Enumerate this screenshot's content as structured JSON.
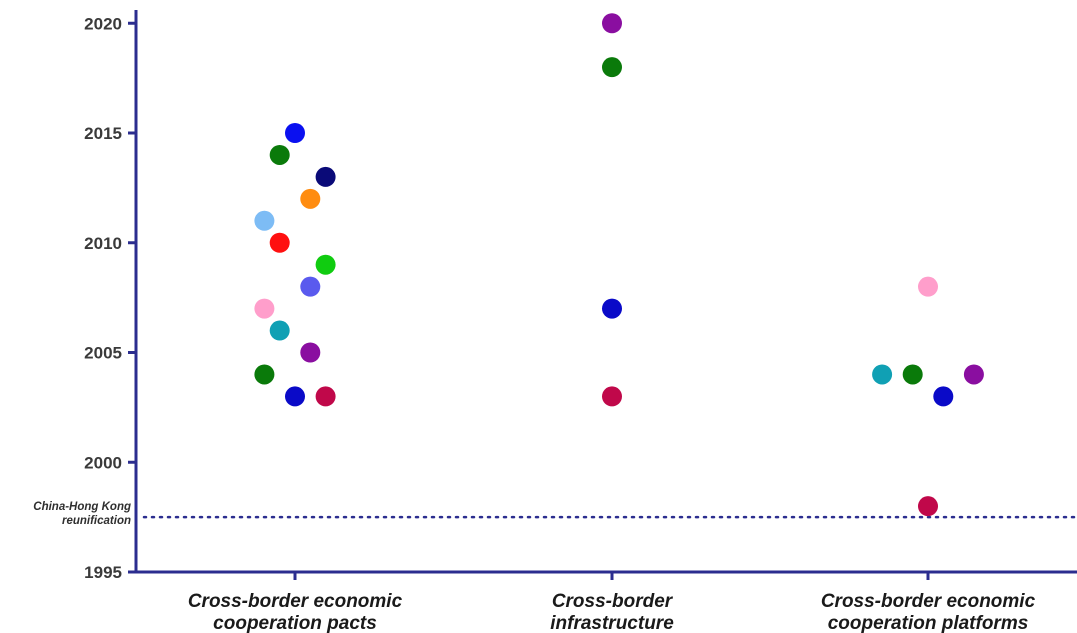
{
  "chart_data": {
    "type": "scatter",
    "y_ticks": [
      "2020",
      "2015",
      "2010",
      "2005",
      "2000",
      "1995"
    ],
    "y_tick_values": [
      2020,
      2015,
      2010,
      2005,
      2000,
      1995
    ],
    "ylim": [
      1995,
      2021
    ],
    "grid": false,
    "categories": [
      [
        "Cross-border economic",
        "cooperation pacts"
      ],
      [
        "Cross-border",
        "infrastructure"
      ],
      [
        "Cross-border economic",
        "cooperation platforms"
      ]
    ],
    "reference_line": {
      "value": 1997.5,
      "label": [
        "China-Hong Kong",
        "reunification"
      ],
      "style": "dotted",
      "color": "#2b2d8f"
    },
    "colors": {
      "axis": "#2b2d8f"
    },
    "points": [
      {
        "category": 0,
        "offset": 0,
        "y": 2015,
        "color": "#0a10f0"
      },
      {
        "category": 0,
        "offset": -1,
        "y": 2014,
        "color": "#0a7a0a"
      },
      {
        "category": 0,
        "offset": 2,
        "y": 2013,
        "color": "#0a0a78"
      },
      {
        "category": 0,
        "offset": 1,
        "y": 2012,
        "color": "#ff8c10"
      },
      {
        "category": 0,
        "offset": -2,
        "y": 2011,
        "color": "#7dbcf5"
      },
      {
        "category": 0,
        "offset": -1,
        "y": 2010,
        "color": "#ff1010"
      },
      {
        "category": 0,
        "offset": 2,
        "y": 2009,
        "color": "#10cc10"
      },
      {
        "category": 0,
        "offset": 1,
        "y": 2008,
        "color": "#5a5aee"
      },
      {
        "category": 0,
        "offset": -2,
        "y": 2007,
        "color": "#ff9ecb"
      },
      {
        "category": 0,
        "offset": -1,
        "y": 2006,
        "color": "#10a0b4"
      },
      {
        "category": 0,
        "offset": 1,
        "y": 2005,
        "color": "#8a0ea0"
      },
      {
        "category": 0,
        "offset": -2,
        "y": 2004,
        "color": "#0a7a0a"
      },
      {
        "category": 0,
        "offset": 0,
        "y": 2003,
        "color": "#0a0ac8"
      },
      {
        "category": 0,
        "offset": 2,
        "y": 2003,
        "color": "#c0084a"
      },
      {
        "category": 1,
        "offset": 0,
        "y": 2020,
        "color": "#8a0ea0"
      },
      {
        "category": 1,
        "offset": 0,
        "y": 2018,
        "color": "#0a7a0a"
      },
      {
        "category": 1,
        "offset": 0,
        "y": 2007,
        "color": "#0a0ac8"
      },
      {
        "category": 1,
        "offset": 0,
        "y": 2003,
        "color": "#c0084a"
      },
      {
        "category": 2,
        "offset": 0,
        "y": 2008,
        "color": "#ff9ecb"
      },
      {
        "category": 2,
        "offset": -3,
        "y": 2004,
        "color": "#10a0b4"
      },
      {
        "category": 2,
        "offset": -1,
        "y": 2004,
        "color": "#0a7a0a"
      },
      {
        "category": 2,
        "offset": 3,
        "y": 2004,
        "color": "#8a0ea0"
      },
      {
        "category": 2,
        "offset": 1,
        "y": 2003,
        "color": "#0a0ac8"
      },
      {
        "category": 2,
        "offset": 0,
        "y": 1998,
        "color": "#c0084a"
      }
    ]
  }
}
